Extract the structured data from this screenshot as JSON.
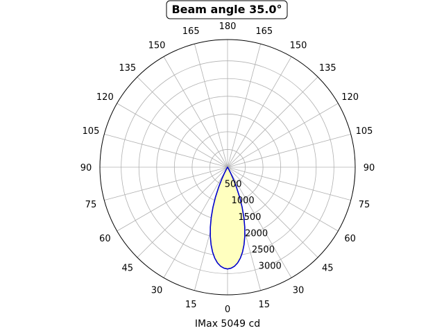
{
  "chart_data": {
    "type": "line",
    "subtype": "polar-photometric",
    "title": "Beam angle 35.0°",
    "xlabel": "IMax 5049 cd",
    "angle_tick_labels": [
      "0",
      "15",
      "30",
      "45",
      "60",
      "75",
      "90",
      "105",
      "120",
      "135",
      "150",
      "165",
      "180",
      "165",
      "150",
      "135",
      "120",
      "105",
      "90",
      "75",
      "60",
      "45",
      "30",
      "15"
    ],
    "radial_tick_labels": [
      "500",
      "1000",
      "1500",
      "2000",
      "2500",
      "3000"
    ],
    "radial_ticks": [
      500,
      1000,
      1500,
      2000,
      2500,
      3000
    ],
    "rlim": [
      0,
      3000
    ],
    "grid": true,
    "series": [
      {
        "angles_deg": [
          0,
          2,
          4,
          6,
          8,
          10,
          12,
          14,
          16,
          18,
          20,
          22,
          24,
          26,
          28,
          30,
          33,
          36
        ],
        "values": [
          2870,
          2850,
          2800,
          2715,
          2590,
          2430,
          2235,
          2010,
          1760,
          1490,
          1205,
          910,
          620,
          360,
          165,
          50,
          5,
          0
        ],
        "line_color": "#0000cc",
        "fill_color": "#ffffbf"
      }
    ]
  }
}
